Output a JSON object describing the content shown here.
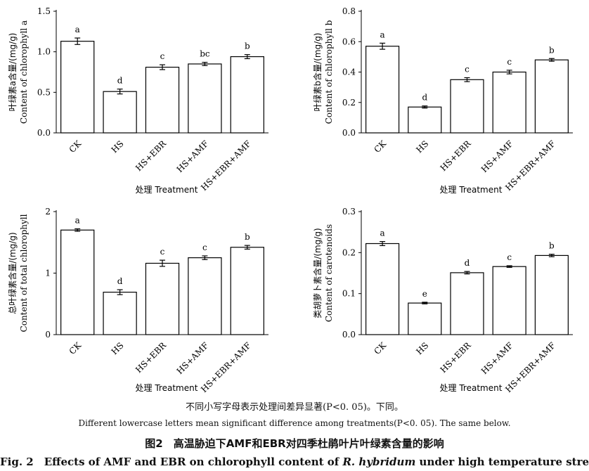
{
  "chart_data": [
    {
      "type": "bar",
      "categories": [
        "CK",
        "HS",
        "HS+EBR",
        "HS+AMF",
        "HS+EBR+AMF"
      ],
      "values": [
        1.13,
        0.51,
        0.81,
        0.85,
        0.94
      ],
      "errors": [
        0.04,
        0.03,
        0.03,
        0.02,
        0.025
      ],
      "letters": [
        "a",
        "d",
        "c",
        "bc",
        "b"
      ],
      "ylim": [
        0,
        1.5
      ],
      "yticks": [
        "0.0",
        "0.5",
        "1.0",
        "1.5"
      ],
      "ylabel_zh": "叶绿素a含量/(mg/g)",
      "ylabel_en": "Content of chlorophyll a",
      "xlabel": "处理 Treatment"
    },
    {
      "type": "bar",
      "categories": [
        "CK",
        "HS",
        "HS+EBR",
        "HS+AMF",
        "HS+EBR+AMF"
      ],
      "values": [
        0.57,
        0.17,
        0.35,
        0.4,
        0.48
      ],
      "errors": [
        0.02,
        0.007,
        0.013,
        0.012,
        0.009
      ],
      "letters": [
        "a",
        "d",
        "c",
        "c",
        "b"
      ],
      "ylim": [
        0,
        0.8
      ],
      "yticks": [
        "0.0",
        "0.2",
        "0.4",
        "0.6",
        "0.8"
      ],
      "ylabel_zh": "叶绿素b含量/(mg/g)",
      "ylabel_en": "Content of chlorophyll b",
      "xlabel": "处理 Treatment"
    },
    {
      "type": "bar",
      "categories": [
        "CK",
        "HS",
        "HS+EBR",
        "HS+AMF",
        "HS+EBR+AMF"
      ],
      "values": [
        1.7,
        0.69,
        1.16,
        1.25,
        1.42
      ],
      "errors": [
        0.02,
        0.04,
        0.05,
        0.03,
        0.03
      ],
      "letters": [
        "a",
        "d",
        "c",
        "c",
        "b"
      ],
      "ylim": [
        0,
        2
      ],
      "yticks": [
        "0",
        "1",
        "2"
      ],
      "ylabel_zh": "总叶绿素含量/(mg/g)",
      "ylabel_en": "Content of total chlorophyll",
      "xlabel": "处理 Treatment"
    },
    {
      "type": "bar",
      "categories": [
        "CK",
        "HS",
        "HS+EBR",
        "HS+AMF",
        "HS+EBR+AMF"
      ],
      "values": [
        0.222,
        0.077,
        0.151,
        0.166,
        0.193
      ],
      "errors": [
        0.005,
        0.002,
        0.003,
        0.002,
        0.003
      ],
      "letters": [
        "a",
        "e",
        "d",
        "c",
        "b"
      ],
      "ylim": [
        0,
        0.3
      ],
      "yticks": [
        "0.0",
        "0.1",
        "0.2",
        "0.3"
      ],
      "ylabel_zh": "类胡萝卜素含量/(mg/g)",
      "ylabel_en": "Content of carotenoids",
      "xlabel": "处理 Treatment"
    }
  ],
  "caption": {
    "note_zh": "不同小写字母表示处理间差异显著(P<0. 05)。下同。",
    "note_en": "Different lowercase letters mean significant difference among treatments(P<0. 05). The same below.",
    "title_zh": "图2　高温胁迫下AMF和EBR对四季杜鹃叶片叶绿素含量的影响",
    "title_en_prefix": "Fig. 2　Effects of AMF and EBR on chlorophyll content of ",
    "title_en_species": "R. hybridum",
    "title_en_suffix": " under high temperature stress"
  }
}
